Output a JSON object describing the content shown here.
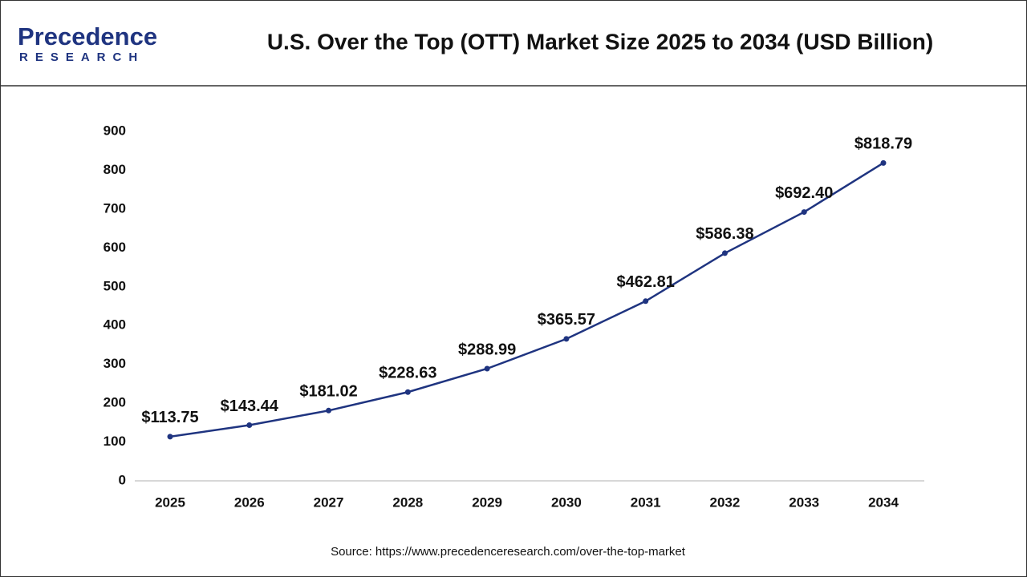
{
  "chart_data": {
    "type": "line",
    "title": "U.S. Over the Top (OTT) Market Size 2025 to 2034 (USD Billion)",
    "logo": {
      "name": "Precedence",
      "tagline": "RESEARCH"
    },
    "source": "Source: https://www.precedenceresearch.com/over-the-top-market",
    "categories": [
      "2025",
      "2026",
      "2027",
      "2028",
      "2029",
      "2030",
      "2031",
      "2032",
      "2033",
      "2034"
    ],
    "series": [
      {
        "color": "#1f3480",
        "values": [
          113.75,
          143.44,
          181.02,
          228.63,
          288.99,
          365.57,
          462.81,
          586.38,
          692.4,
          818.79
        ],
        "value_labels": [
          "$113.75",
          "$143.44",
          "$181.02",
          "$228.63",
          "$288.99",
          "$365.57",
          "$462.81",
          "$586.38",
          "$692.40",
          "$818.79"
        ]
      }
    ],
    "ylim": [
      0,
      900
    ],
    "yticks": [
      0,
      100,
      200,
      300,
      400,
      500,
      600,
      700,
      800,
      900
    ],
    "grid": false
  }
}
